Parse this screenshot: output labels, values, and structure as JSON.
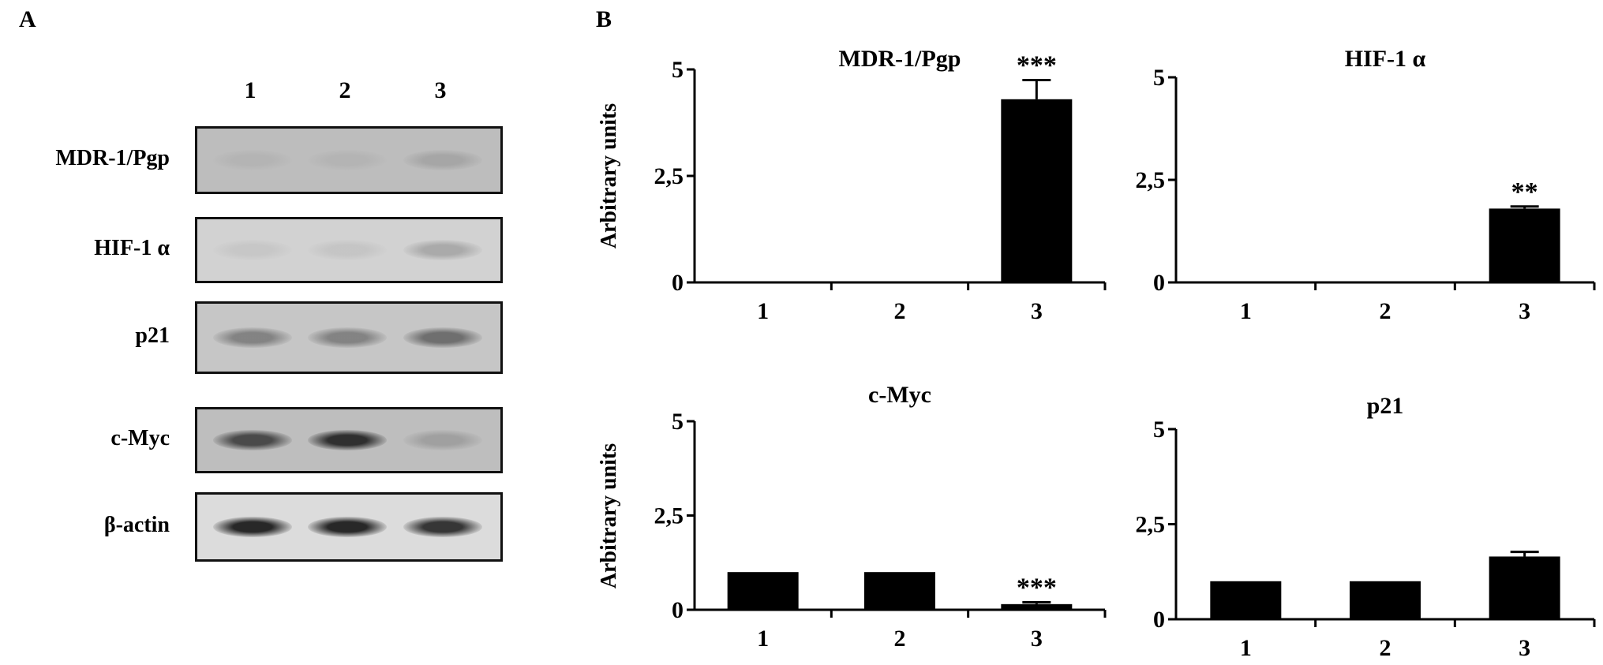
{
  "panel_a": {
    "letter": "A",
    "lanes": [
      "1",
      "2",
      "3"
    ],
    "blots": [
      {
        "label": "MDR-1/Pgp",
        "bg": "#bdbdbd",
        "intensity": [
          0.15,
          0.15,
          0.3
        ]
      },
      {
        "label": "HIF-1 α",
        "bg": "#d2d2d2",
        "intensity": [
          0.1,
          0.12,
          0.35
        ]
      },
      {
        "label": "p21",
        "bg": "#c6c6c6",
        "intensity": [
          0.55,
          0.55,
          0.65
        ]
      },
      {
        "label": "c-Myc",
        "bg": "#bebebe",
        "intensity": [
          0.8,
          0.95,
          0.35
        ]
      },
      {
        "label": "β-actin",
        "bg": "#dcdcdc",
        "intensity": [
          1.0,
          1.0,
          0.9
        ]
      }
    ]
  },
  "panel_b": {
    "letter": "B"
  },
  "chart_data": [
    {
      "type": "bar",
      "title": "MDR-1/Pgp",
      "ylabel": "Arbitrary units",
      "categories": [
        "1",
        "2",
        "3"
      ],
      "values": [
        0,
        0,
        4.3
      ],
      "errors": [
        0,
        0,
        0.45
      ],
      "annotations": [
        "",
        "",
        "***"
      ],
      "yticks": [
        "0",
        "2,5",
        "5"
      ],
      "ylim": [
        0,
        5
      ]
    },
    {
      "type": "bar",
      "title": "HIF-1 α",
      "ylabel": "",
      "categories": [
        "1",
        "2",
        "3"
      ],
      "values": [
        0,
        0,
        1.8
      ],
      "errors": [
        0,
        0,
        0.05
      ],
      "annotations": [
        "",
        "",
        "**"
      ],
      "yticks": [
        "0",
        "2,5",
        "5"
      ],
      "ylim": [
        0,
        5
      ]
    },
    {
      "type": "bar",
      "title": "c-Myc",
      "ylabel": "Arbitrary units",
      "categories": [
        "1",
        "2",
        "3"
      ],
      "values": [
        1.0,
        1.0,
        0.15
      ],
      "errors": [
        0,
        0,
        0.05
      ],
      "annotations": [
        "",
        "",
        "***"
      ],
      "yticks": [
        "0",
        "2,5",
        "5"
      ],
      "ylim": [
        0,
        5
      ]
    },
    {
      "type": "bar",
      "title": "p21",
      "ylabel": "",
      "categories": [
        "1",
        "2",
        "3"
      ],
      "values": [
        1.0,
        1.0,
        1.65
      ],
      "errors": [
        0,
        0,
        0.12
      ],
      "annotations": [
        "",
        "",
        ""
      ],
      "yticks": [
        "0",
        "2,5",
        "5"
      ],
      "ylim": [
        0,
        5
      ]
    }
  ]
}
